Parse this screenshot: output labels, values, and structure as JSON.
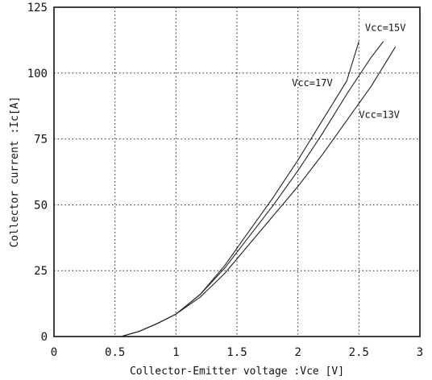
{
  "chart_data": {
    "type": "line",
    "title": "",
    "xlabel": "Collector-Emitter voltage :Vce [V]",
    "ylabel": "Collector current :Ic[A]",
    "xlim": [
      0,
      3
    ],
    "ylim": [
      0,
      125
    ],
    "xticks": [
      0,
      0.5,
      1,
      1.5,
      2,
      2.5,
      3
    ],
    "xtick_labels": [
      "0",
      "0.5",
      "1",
      "1.5",
      "2",
      "2.5",
      "3"
    ],
    "yticks": [
      0,
      25,
      50,
      75,
      100,
      125
    ],
    "ytick_labels": [
      "0",
      "25",
      "50",
      "75",
      "100",
      "125"
    ],
    "grid": true,
    "legend": "none (curves labeled directly)",
    "series": [
      {
        "name": "Vcc=17V",
        "x": [
          0.55,
          0.7,
          0.85,
          1.0,
          1.2,
          1.4,
          1.6,
          1.8,
          2.0,
          2.2,
          2.4,
          2.5
        ],
        "y": [
          0,
          2,
          5,
          8.5,
          16,
          27,
          40,
          53,
          67,
          82,
          97,
          112
        ]
      },
      {
        "name": "Vcc=15V",
        "x": [
          0.55,
          0.7,
          0.85,
          1.0,
          1.2,
          1.4,
          1.6,
          1.8,
          2.0,
          2.2,
          2.4,
          2.6,
          2.7
        ],
        "y": [
          0,
          2,
          5,
          8.5,
          16,
          26,
          38,
          50,
          63,
          77,
          92,
          106,
          112
        ]
      },
      {
        "name": "Vcc=13V",
        "x": [
          0.55,
          0.7,
          0.85,
          1.0,
          1.2,
          1.4,
          1.6,
          1.8,
          2.0,
          2.2,
          2.4,
          2.6,
          2.8
        ],
        "y": [
          0,
          2,
          5,
          8.5,
          15,
          24,
          35,
          46,
          57,
          69,
          82,
          95,
          110
        ]
      }
    ],
    "annotations": [
      {
        "text": "Vcc=15V",
        "x": 2.55,
        "y": 116
      },
      {
        "text": "Vcc=17V",
        "x": 1.95,
        "y": 95
      },
      {
        "text": "Vcc=13V",
        "x": 2.5,
        "y": 83
      }
    ]
  }
}
